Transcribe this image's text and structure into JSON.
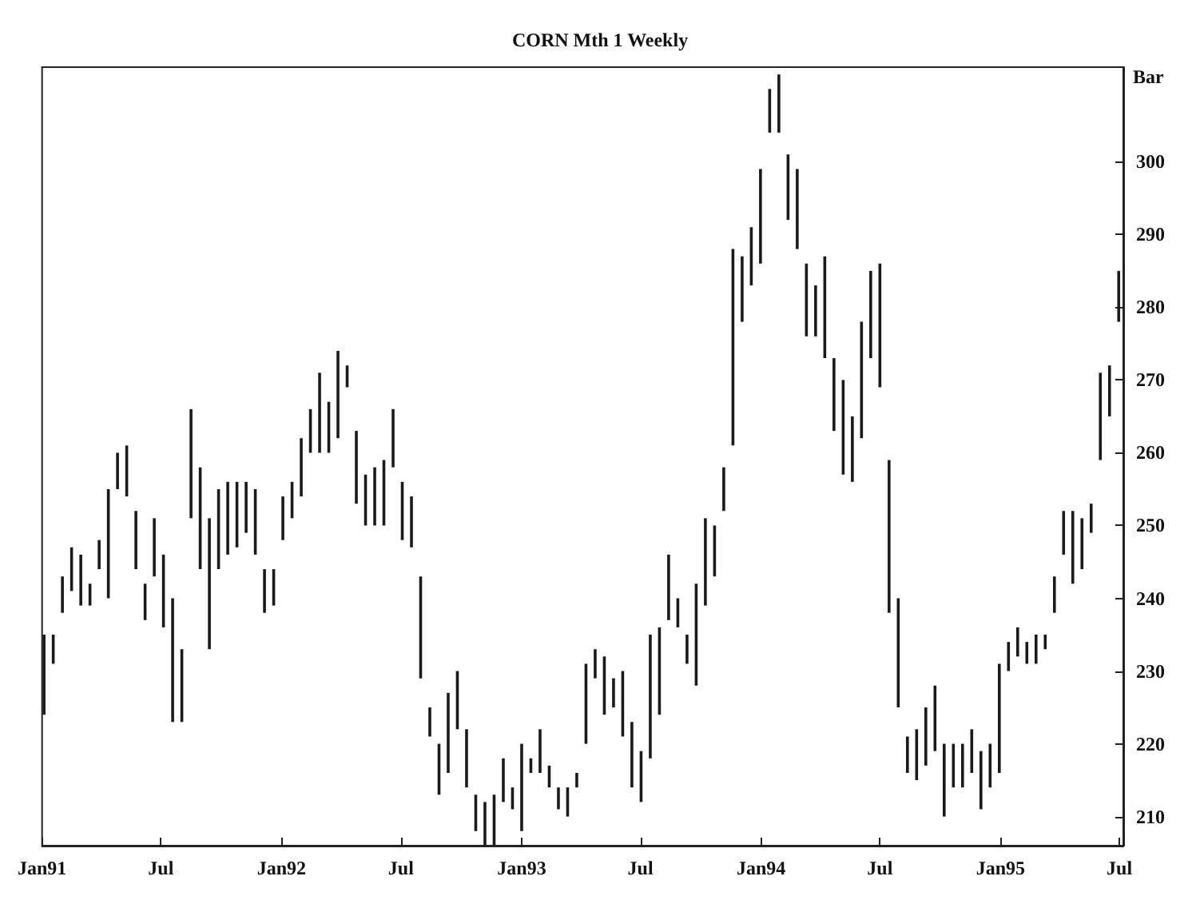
{
  "chart_data": {
    "type": "bar",
    "title": "CORN Mth 1 Weekly",
    "ylabel": "Bar",
    "x": [
      "1991-01-04",
      "1991-01-18",
      "1991-02-01",
      "1991-02-15",
      "1991-03-01",
      "1991-03-15",
      "1991-03-29",
      "1991-04-12",
      "1991-04-26",
      "1991-05-10",
      "1991-05-24",
      "1991-06-07",
      "1991-06-21",
      "1991-07-05",
      "1991-07-19",
      "1991-08-02",
      "1991-08-16",
      "1991-08-30",
      "1991-09-13",
      "1991-09-27",
      "1991-10-11",
      "1991-10-25",
      "1991-11-08",
      "1991-11-22",
      "1991-12-06",
      "1991-12-20",
      "1992-01-03",
      "1992-01-17",
      "1992-01-31",
      "1992-02-14",
      "1992-02-28",
      "1992-03-13",
      "1992-03-27",
      "1992-04-10",
      "1992-04-24",
      "1992-05-08",
      "1992-05-22",
      "1992-06-05",
      "1992-06-19",
      "1992-07-03",
      "1992-07-17",
      "1992-07-31",
      "1992-08-14",
      "1992-08-28",
      "1992-09-11",
      "1992-09-25",
      "1992-10-09",
      "1992-10-23",
      "1992-11-06",
      "1992-11-20",
      "1992-12-04",
      "1992-12-18",
      "1993-01-01",
      "1993-01-15",
      "1993-01-29",
      "1993-02-12",
      "1993-02-26",
      "1993-03-12",
      "1993-03-26",
      "1993-04-09",
      "1993-04-23",
      "1993-05-07",
      "1993-05-21",
      "1993-06-04",
      "1993-06-18",
      "1993-07-02",
      "1993-07-16",
      "1993-07-30",
      "1993-08-13",
      "1993-08-27",
      "1993-09-10",
      "1993-09-24",
      "1993-10-08",
      "1993-10-22",
      "1993-11-05",
      "1993-11-19",
      "1993-12-03",
      "1993-12-17",
      "1993-12-31",
      "1994-01-14",
      "1994-01-28",
      "1994-02-11",
      "1994-02-25",
      "1994-03-11",
      "1994-03-25",
      "1994-04-08",
      "1994-04-22",
      "1994-05-06",
      "1994-05-20",
      "1994-06-03",
      "1994-06-17",
      "1994-07-01",
      "1994-07-15",
      "1994-07-29",
      "1994-08-12",
      "1994-08-26",
      "1994-09-09",
      "1994-09-23",
      "1994-10-07",
      "1994-10-21",
      "1994-11-04",
      "1994-11-18",
      "1994-12-02",
      "1994-12-16",
      "1994-12-30",
      "1995-01-13",
      "1995-01-27",
      "1995-02-10",
      "1995-02-24",
      "1995-03-10",
      "1995-03-24",
      "1995-04-07",
      "1995-04-21",
      "1995-05-05",
      "1995-05-19",
      "1995-06-02",
      "1995-06-16",
      "1995-06-30"
    ],
    "base": [
      224,
      231,
      238,
      241,
      239,
      239,
      244,
      240,
      255,
      254,
      244,
      237,
      243,
      236,
      223,
      223,
      251,
      244,
      233,
      244,
      246,
      247,
      249,
      246,
      238,
      239,
      248,
      251,
      254,
      260,
      260,
      260,
      262,
      269,
      253,
      250,
      250,
      250,
      258,
      248,
      247,
      229,
      221,
      213,
      216,
      222,
      214,
      208,
      206,
      206,
      212,
      211,
      208,
      216,
      216,
      214,
      211,
      210,
      214,
      220,
      229,
      224,
      225,
      221,
      214,
      212,
      218,
      224,
      237,
      236,
      231,
      228,
      239,
      243,
      252,
      261,
      278,
      283,
      286,
      304,
      304,
      292,
      288,
      276,
      276,
      273,
      263,
      257,
      256,
      262,
      273,
      269,
      238,
      225,
      216,
      215,
      217,
      219,
      210,
      214,
      214,
      216,
      211,
      214,
      216,
      230,
      232,
      231,
      231,
      233,
      238,
      246,
      242,
      244,
      249,
      259,
      265,
      278
    ],
    "values": [
      11,
      4,
      5,
      6,
      7,
      3,
      4,
      15,
      5,
      7,
      8,
      5,
      8,
      10,
      17,
      10,
      15,
      14,
      18,
      11,
      10,
      9,
      7,
      9,
      6,
      5,
      6,
      5,
      8,
      6,
      11,
      7,
      12,
      3,
      10,
      7,
      8,
      9,
      8,
      8,
      7,
      14,
      4,
      7,
      11,
      8,
      8,
      5,
      6,
      7,
      6,
      3,
      12,
      2,
      6,
      3,
      3,
      4,
      2,
      11,
      4,
      8,
      4,
      9,
      9,
      7,
      17,
      12,
      9,
      4,
      4,
      14,
      12,
      7,
      6,
      27,
      9,
      8,
      13,
      6,
      8,
      9,
      11,
      10,
      7,
      14,
      10,
      13,
      9,
      16,
      12,
      17,
      21,
      15,
      5,
      7,
      8,
      9,
      10,
      6,
      6,
      6,
      8,
      6,
      15,
      4,
      4,
      3,
      4,
      2,
      5,
      6,
      10,
      7,
      4,
      12,
      7,
      7
    ],
    "color": "#1a1a1a",
    "xlim": [
      "1991-01-01",
      "1995-07-07"
    ],
    "xticks": [
      {
        "value": "1991-01-01",
        "label": "Jan91"
      },
      {
        "value": "1991-07-01",
        "label": "Jul"
      },
      {
        "value": "1992-01-01",
        "label": "Jan92"
      },
      {
        "value": "1992-07-01",
        "label": "Jul"
      },
      {
        "value": "1993-01-01",
        "label": "Jan93"
      },
      {
        "value": "1993-07-01",
        "label": "Jul"
      },
      {
        "value": "1994-01-01",
        "label": "Jan94"
      },
      {
        "value": "1994-07-01",
        "label": "Jul"
      },
      {
        "value": "1995-01-01",
        "label": "Jan95"
      },
      {
        "value": "1995-07-01",
        "label": "Jul"
      }
    ],
    "ylim": [
      206,
      313
    ],
    "yticks": [
      210,
      220,
      230,
      240,
      250,
      260,
      270,
      280,
      290,
      300
    ],
    "grid": false
  }
}
